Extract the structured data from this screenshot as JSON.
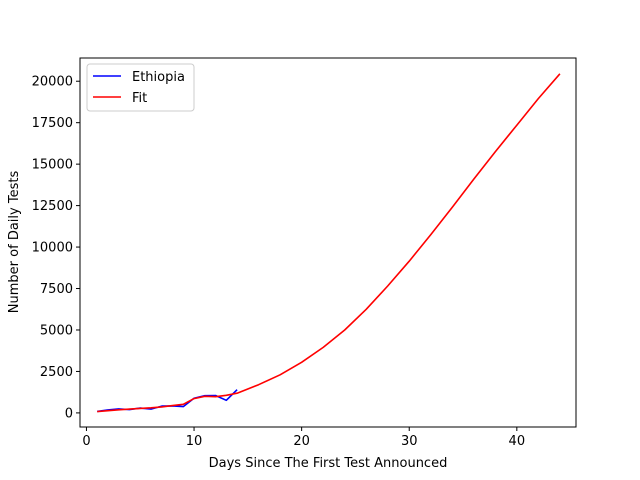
{
  "chart_data": {
    "type": "line",
    "title": "",
    "xlabel": "Days Since The First Test Announced",
    "ylabel": "Number of Daily Tests",
    "xlim": [
      -0.6,
      45.5
    ],
    "ylim": [
      -850,
      21400
    ],
    "xticks": [
      0,
      10,
      20,
      30,
      40
    ],
    "yticks": [
      0,
      2500,
      5000,
      7500,
      10000,
      12500,
      15000,
      17500,
      20000
    ],
    "grid": false,
    "legend_position": "top-left",
    "series": [
      {
        "name": "Ethiopia",
        "color": "#0000ff",
        "x": [
          1,
          2,
          3,
          4,
          5,
          6,
          7,
          8,
          9,
          10,
          11,
          12,
          13,
          14
        ],
        "y": [
          90,
          180,
          240,
          200,
          290,
          230,
          410,
          420,
          380,
          880,
          1040,
          1050,
          760,
          1400
        ]
      },
      {
        "name": "Fit",
        "color": "#ff0000",
        "x": [
          1,
          2,
          3,
          4,
          5,
          6,
          7,
          8,
          9,
          10,
          11,
          12,
          13,
          14,
          16,
          18,
          20,
          22,
          24,
          26,
          28,
          30,
          32,
          34,
          36,
          38,
          40,
          42,
          44
        ],
        "y": [
          80,
          130,
          190,
          230,
          270,
          310,
          360,
          440,
          520,
          860,
          1000,
          980,
          1060,
          1190,
          1700,
          2300,
          3050,
          3950,
          5000,
          6250,
          7650,
          9150,
          10750,
          12400,
          14100,
          15750,
          17350,
          18950,
          20450
        ]
      }
    ]
  }
}
